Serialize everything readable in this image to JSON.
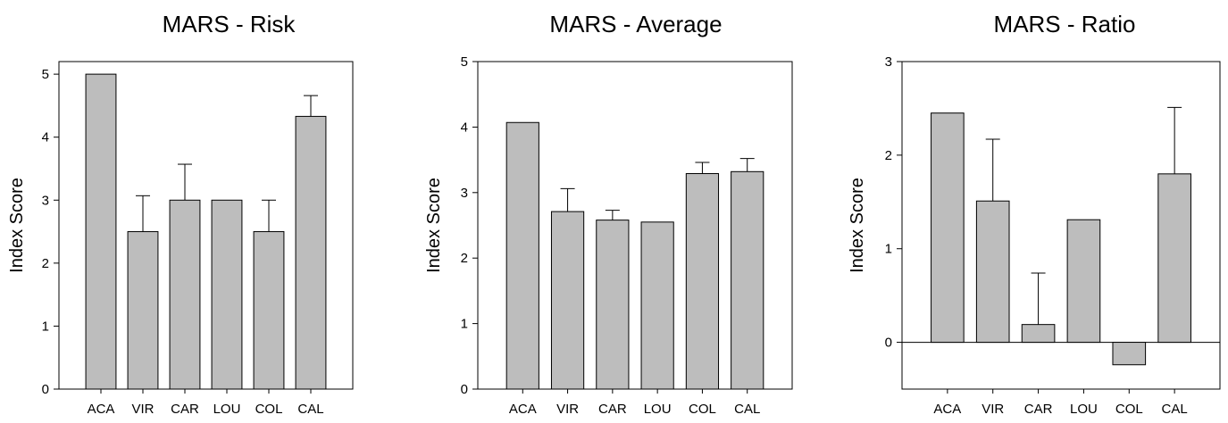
{
  "chart_data": [
    {
      "type": "bar",
      "title": "MARS - Risk",
      "ylabel": "Index Score",
      "categories": [
        "ACA",
        "VIR",
        "CAR",
        "LOU",
        "COL",
        "CAL"
      ],
      "values": [
        5.0,
        2.5,
        3.0,
        3.0,
        2.5,
        4.33
      ],
      "error_upper": [
        0,
        0.57,
        0.57,
        0,
        0.5,
        0.33
      ],
      "ylim": [
        0,
        5.2
      ],
      "yticks": [
        0,
        1,
        2,
        3,
        4,
        5
      ],
      "ytick_labels": [
        "0",
        "1",
        "2",
        "3",
        "4",
        "5"
      ]
    },
    {
      "type": "bar",
      "title": "MARS - Average",
      "ylabel": "Index Score",
      "categories": [
        "ACA",
        "VIR",
        "CAR",
        "LOU",
        "COL",
        "CAL"
      ],
      "values": [
        4.07,
        2.71,
        2.58,
        2.55,
        3.29,
        3.32
      ],
      "error_upper": [
        0,
        0.35,
        0.15,
        0,
        0.17,
        0.2
      ],
      "ylim": [
        0,
        5
      ],
      "yticks": [
        0,
        1,
        2,
        3,
        4,
        5
      ],
      "ytick_labels": [
        "0",
        "1",
        "2",
        "3",
        "4",
        "5"
      ]
    },
    {
      "type": "bar",
      "title": "MARS - Ratio",
      "ylabel": "Index Score",
      "categories": [
        "ACA",
        "VIR",
        "CAR",
        "LOU",
        "COL",
        "CAL"
      ],
      "values": [
        2.45,
        1.51,
        0.19,
        1.31,
        -0.24,
        1.8
      ],
      "error_upper": [
        0,
        0.66,
        0.55,
        0,
        0,
        0.71
      ],
      "ylim": [
        -0.5,
        3
      ],
      "yticks": [
        0,
        1,
        2,
        3
      ],
      "ytick_labels": [
        "0",
        "1",
        "2",
        "3"
      ]
    }
  ]
}
